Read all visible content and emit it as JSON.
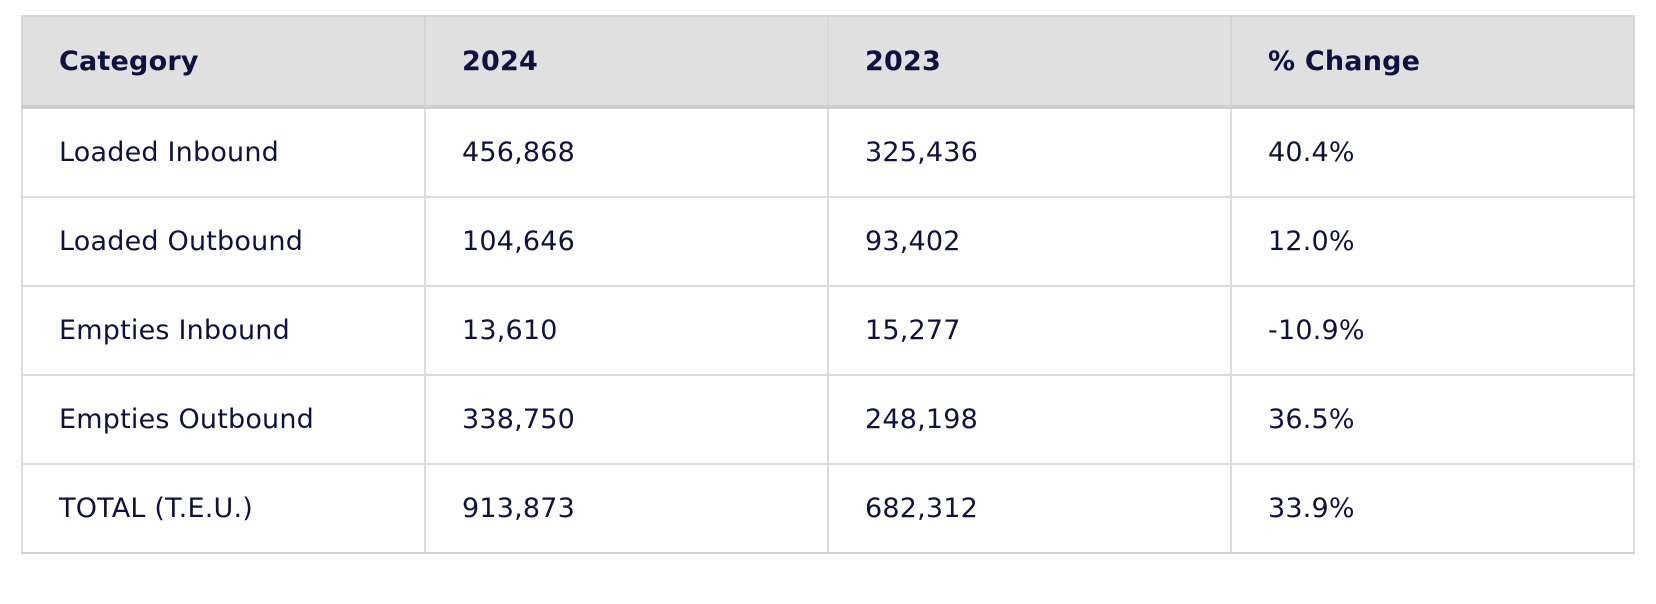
{
  "table": {
    "headers": [
      "Category",
      "2024",
      "2023",
      "% Change"
    ],
    "rows": [
      [
        "Loaded Inbound",
        "456,868",
        "325,436",
        "40.4%"
      ],
      [
        "Loaded Outbound",
        "104,646",
        "93,402",
        "12.0%"
      ],
      [
        "Empties Inbound",
        "13,610",
        "15,277",
        "-10.9%"
      ],
      [
        "Empties Outbound",
        "338,750",
        "248,198",
        "36.5%"
      ],
      [
        "TOTAL (T.E.U.)",
        "913,873",
        "682,312",
        "33.9%"
      ]
    ]
  }
}
